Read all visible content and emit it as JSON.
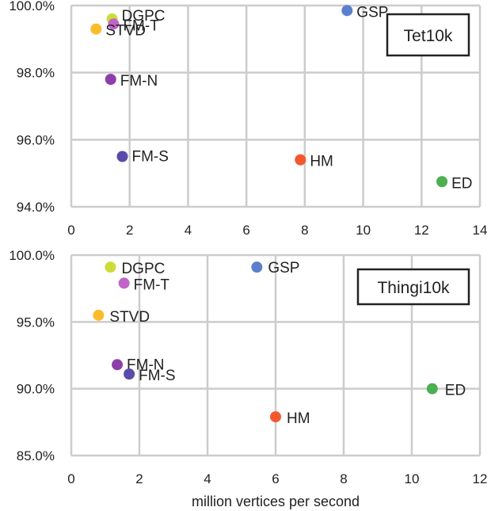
{
  "chart_data": [
    {
      "type": "scatter",
      "title": "",
      "tag": "Tet10k",
      "xlabel": "",
      "ylabel": "",
      "xlim": [
        0,
        14
      ],
      "ylim": [
        94,
        100
      ],
      "x_ticks": [
        "0",
        "2",
        "4",
        "6",
        "8",
        "10",
        "12",
        "14"
      ],
      "y_ticks": [
        "94.0%",
        "96.0%",
        "98.0%",
        "100.0%"
      ],
      "grid": true,
      "points": [
        {
          "label": "DGPC",
          "x": 1.4,
          "y": 99.6,
          "color": "#cddc39"
        },
        {
          "label": "FM-T",
          "x": 1.45,
          "y": 99.45,
          "color": "#c064c8"
        },
        {
          "label": "STVD",
          "x": 0.85,
          "y": 99.3,
          "color": "#fbbc2c"
        },
        {
          "label": "GSP",
          "x": 9.45,
          "y": 99.85,
          "color": "#5b7fcc"
        },
        {
          "label": "FM-N",
          "x": 1.35,
          "y": 97.8,
          "color": "#8e3ea8"
        },
        {
          "label": "FM-S",
          "x": 1.75,
          "y": 95.5,
          "color": "#5a4aaa"
        },
        {
          "label": "HM",
          "x": 7.85,
          "y": 95.4,
          "color": "#f4572e"
        },
        {
          "label": "ED",
          "x": 12.7,
          "y": 94.75,
          "color": "#4caf50"
        }
      ]
    },
    {
      "type": "scatter",
      "title": "",
      "tag": "Thingi10k",
      "xlabel": "million vertices per second",
      "ylabel": "",
      "xlim": [
        0,
        12
      ],
      "ylim": [
        85,
        100
      ],
      "x_ticks": [
        "0",
        "2",
        "4",
        "6",
        "8",
        "10",
        "12"
      ],
      "y_ticks": [
        "85.0%",
        "90.0%",
        "95.0%",
        "100.0%"
      ],
      "grid": true,
      "points": [
        {
          "label": "DGPC",
          "x": 1.15,
          "y": 99.1,
          "color": "#cddc39"
        },
        {
          "label": "FM-T",
          "x": 1.55,
          "y": 97.9,
          "color": "#c064c8"
        },
        {
          "label": "STVD",
          "x": 0.8,
          "y": 95.5,
          "color": "#fbbc2c"
        },
        {
          "label": "GSP",
          "x": 5.45,
          "y": 99.1,
          "color": "#5b7fcc"
        },
        {
          "label": "FM-N",
          "x": 1.35,
          "y": 91.8,
          "color": "#8e3ea8"
        },
        {
          "label": "FM-S",
          "x": 1.7,
          "y": 91.1,
          "color": "#5a4aaa"
        },
        {
          "label": "HM",
          "x": 6.0,
          "y": 87.9,
          "color": "#f4572e"
        },
        {
          "label": "ED",
          "x": 10.6,
          "y": 90.0,
          "color": "#4caf50"
        }
      ]
    }
  ]
}
